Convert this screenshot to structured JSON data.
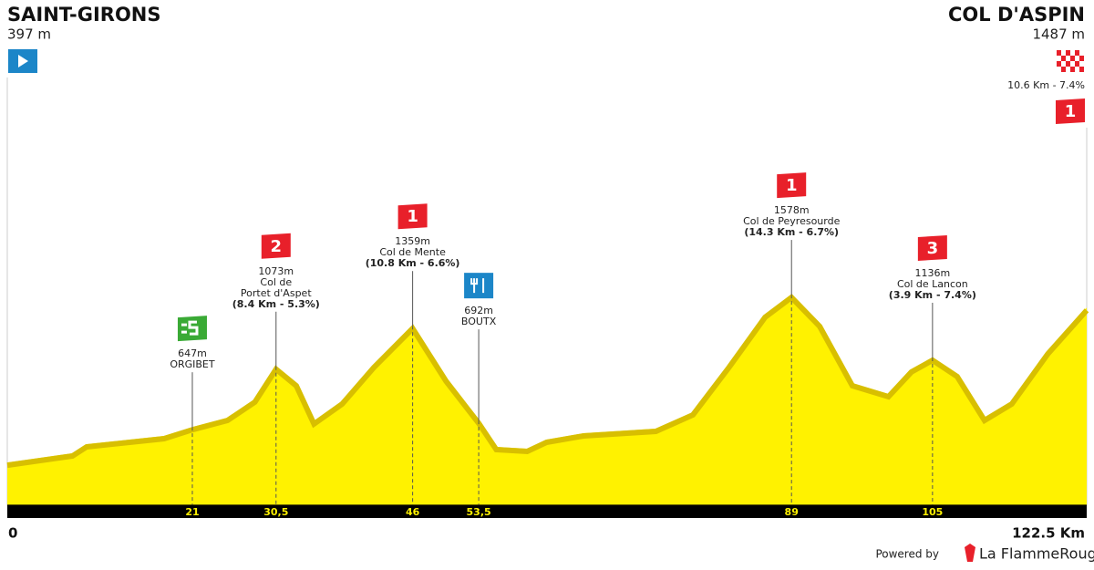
{
  "chart_data": {
    "type": "area",
    "start": {
      "name": "SAINT-GIRONS",
      "altitude": "397 m"
    },
    "finish": {
      "name": "COL D'ASPIN",
      "altitude": "1487 m",
      "climb": "10.6 Km - 7.4%",
      "category": "1"
    },
    "x": [
      0,
      7.4,
      9,
      17.8,
      21,
      25,
      28.1,
      30.5,
      32.8,
      34.8,
      38,
      41.6,
      46,
      49.8,
      53.5,
      55.5,
      59,
      61.2,
      65.4,
      73.6,
      77.8,
      81.9,
      86,
      89,
      92.2,
      95.9,
      100,
      102.6,
      105,
      107.8,
      110.9,
      114,
      118.1,
      122.5
    ],
    "values": [
      397,
      462,
      526,
      584,
      647,
      712,
      841,
      1073,
      956,
      687,
      828,
      1085,
      1359,
      988,
      692,
      507,
      494,
      558,
      603,
      635,
      751,
      1085,
      1438,
      1578,
      1374,
      956,
      879,
      1053,
      1136,
      1021,
      712,
      828,
      1181,
      1487
    ],
    "color": "#fff200",
    "xlim": [
      0,
      122.5
    ],
    "ylim": [
      100,
      3600
    ],
    "xticks": [
      21,
      {
        "value": 30.5,
        "label": "30,5"
      },
      46,
      {
        "value": 53.5,
        "label": "53,5"
      },
      89,
      105
    ],
    "x_end_labels": [
      {
        "value": 0,
        "label": "0"
      },
      {
        "value": 122.5,
        "label": "122.5 Km"
      }
    ],
    "waypoints": [
      {
        "km": 21,
        "kind": "sprint",
        "lines": [
          "647m",
          "ORGIBET"
        ]
      },
      {
        "km": 30.5,
        "kind": "climb",
        "category": "2",
        "lines": [
          "1073m",
          "Col de",
          "Portet d'Aspet"
        ],
        "climb": "(8.4 Km - 5.3%)"
      },
      {
        "km": 46,
        "kind": "climb",
        "category": "1",
        "lines": [
          "1359m",
          "Col de Mente"
        ],
        "climb": "(10.8 Km - 6.6%)"
      },
      {
        "km": 53.5,
        "kind": "feed",
        "lines": [
          "692m",
          "BOUTX"
        ]
      },
      {
        "km": 89,
        "kind": "climb",
        "category": "1",
        "lines": [
          "1578m",
          "Col de Peyresourde"
        ],
        "climb": "(14.3 Km - 6.7%)"
      },
      {
        "km": 105,
        "kind": "climb",
        "category": "3",
        "lines": [
          "1136m",
          "Col de Lancon"
        ],
        "climb": "(3.9 Km - 7.4%)"
      }
    ]
  },
  "footer": {
    "powered": "Powered by",
    "brand": "La FlammeRouge"
  }
}
